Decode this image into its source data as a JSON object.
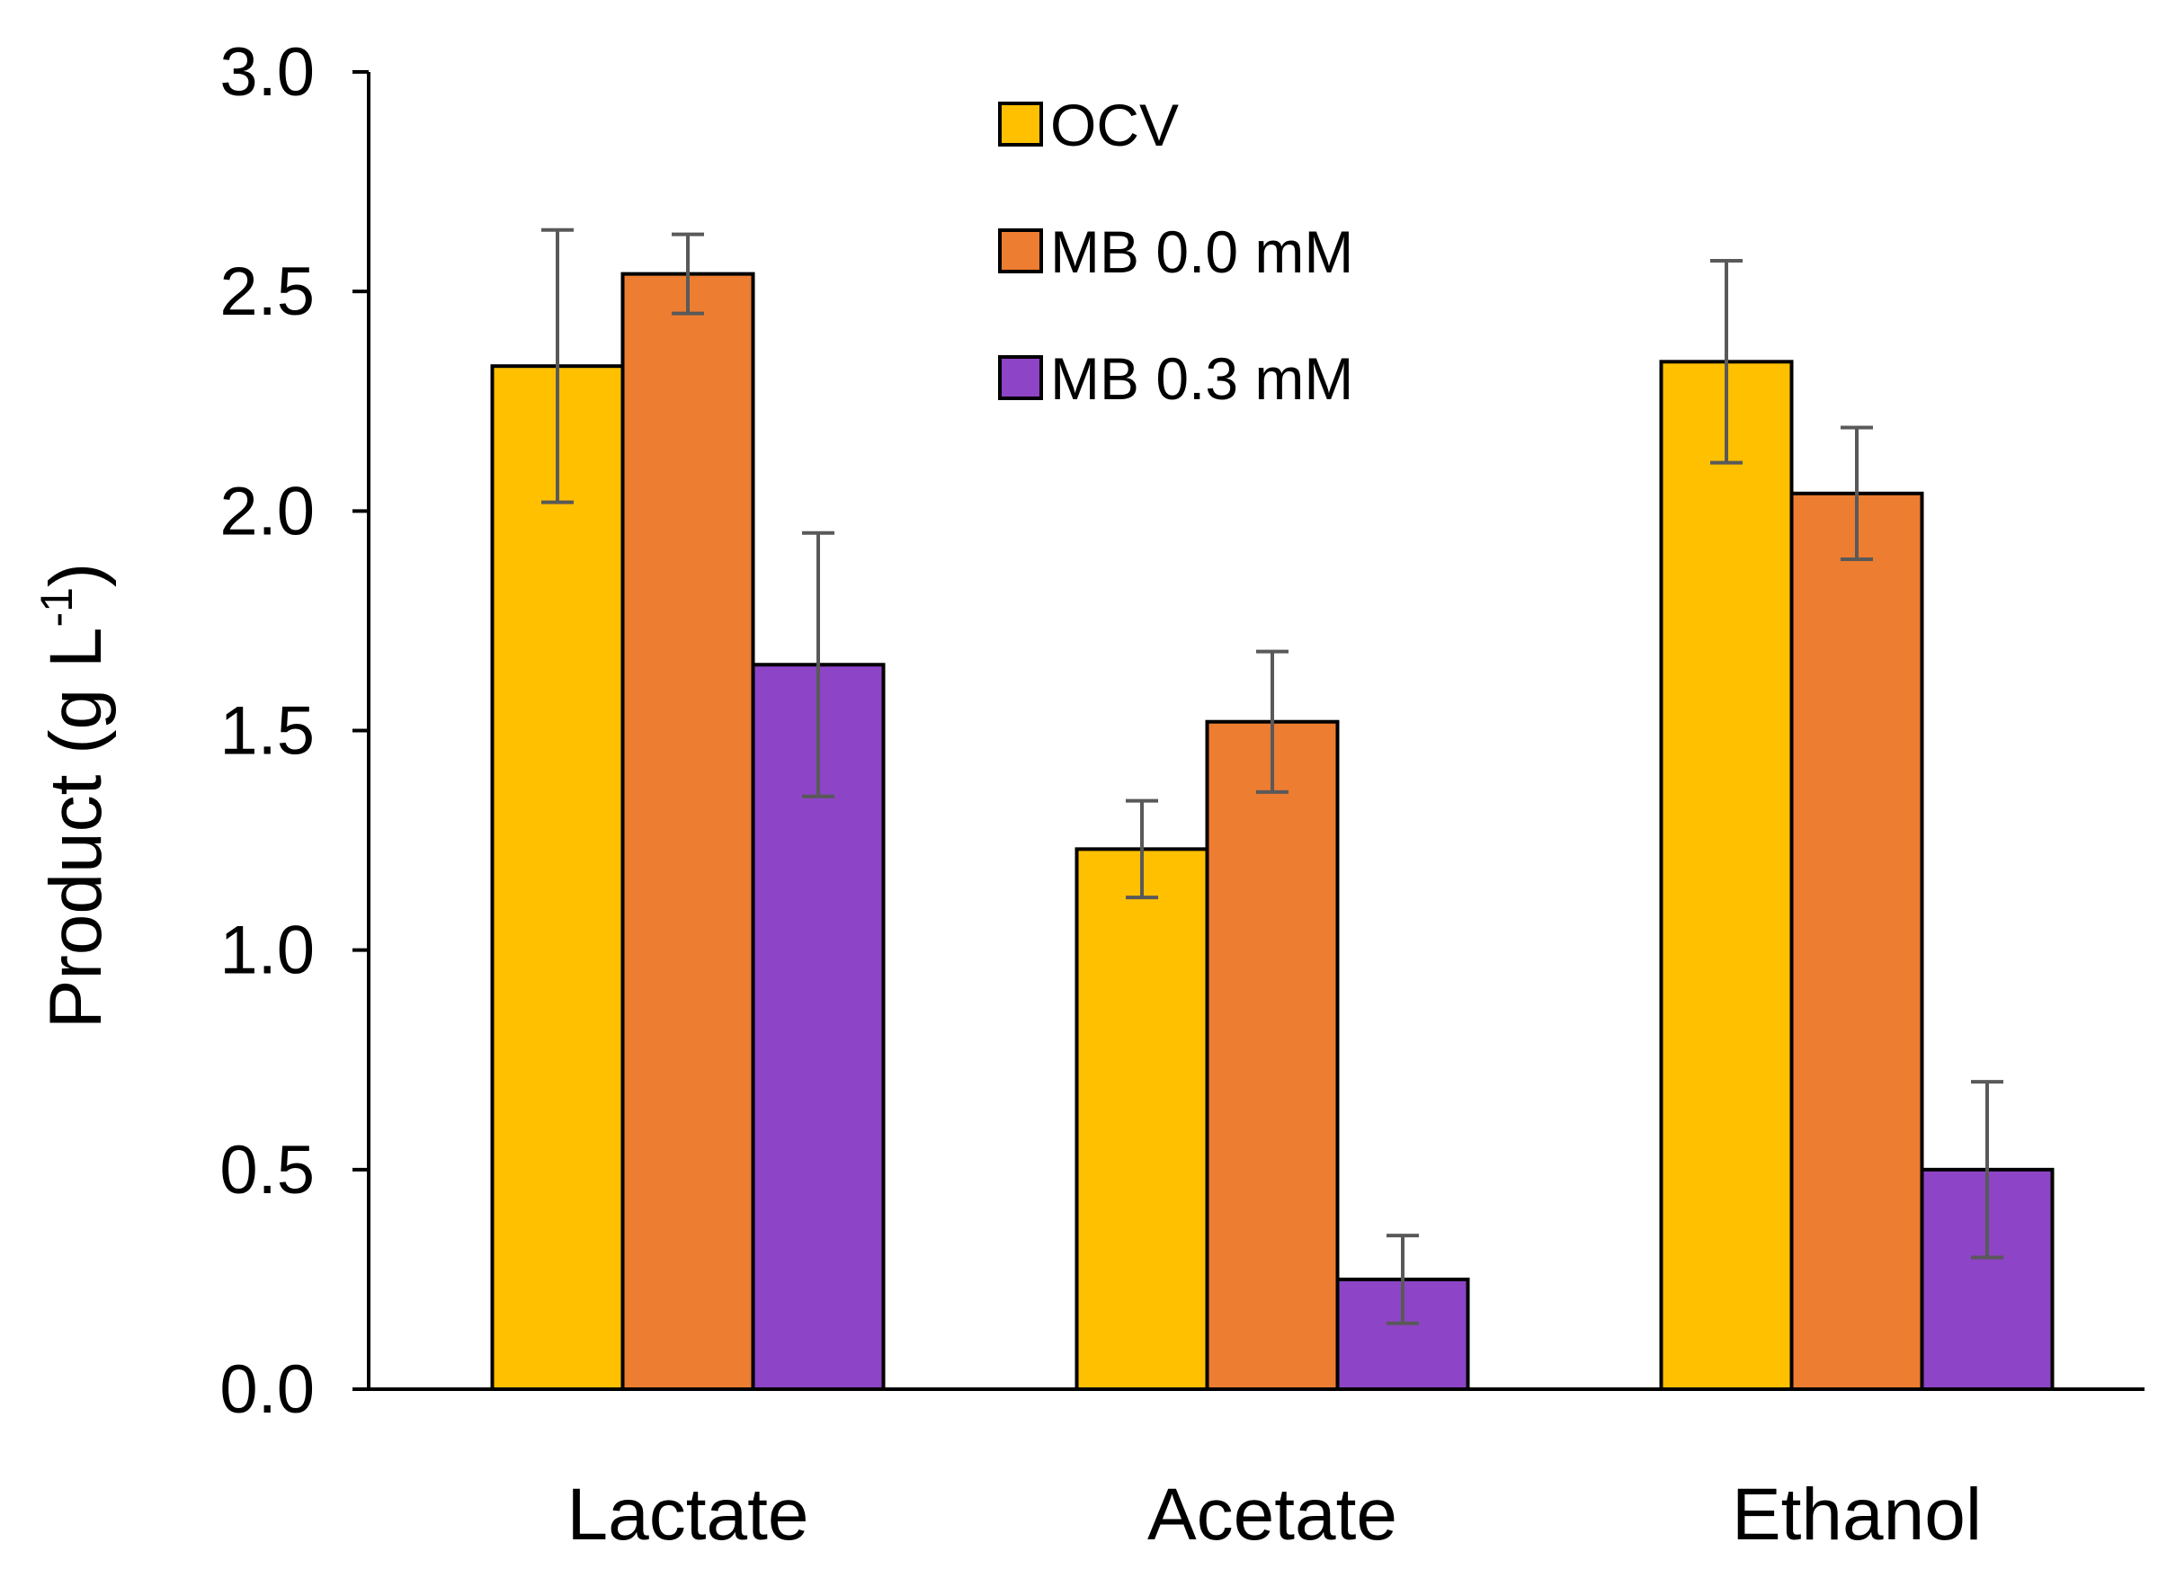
{
  "chart_data": {
    "type": "bar",
    "title": "",
    "xlabel": "",
    "ylabel": "Product (g L",
    "ylabel_superscript": "-1",
    "ylabel_close": ")",
    "categories": [
      "Lactate",
      "Acetate",
      "Ethanol"
    ],
    "ylim": [
      0,
      3.0
    ],
    "yticks": [
      "0.0",
      "0.5",
      "1.0",
      "1.5",
      "2.0",
      "2.5",
      "3.0"
    ],
    "ytick_values": [
      0,
      0.5,
      1.0,
      1.5,
      2.0,
      2.5,
      3.0
    ],
    "grid": false,
    "legend_position": "top-center",
    "series": [
      {
        "name": "OCV",
        "color": "#FFC000",
        "values": [
          2.33,
          1.23,
          2.34
        ],
        "errors": [
          0.31,
          0.11,
          0.23
        ]
      },
      {
        "name": "MB 0.0 mM",
        "color": "#ED7D31",
        "values": [
          2.54,
          1.52,
          2.04
        ],
        "errors": [
          0.09,
          0.16,
          0.15
        ]
      },
      {
        "name": "MB 0.3 mM",
        "color": "#8E44C6",
        "values": [
          1.65,
          0.25,
          0.5
        ],
        "errors": [
          0.3,
          0.1,
          0.2
        ]
      }
    ],
    "error_bar_color": "#595959"
  }
}
